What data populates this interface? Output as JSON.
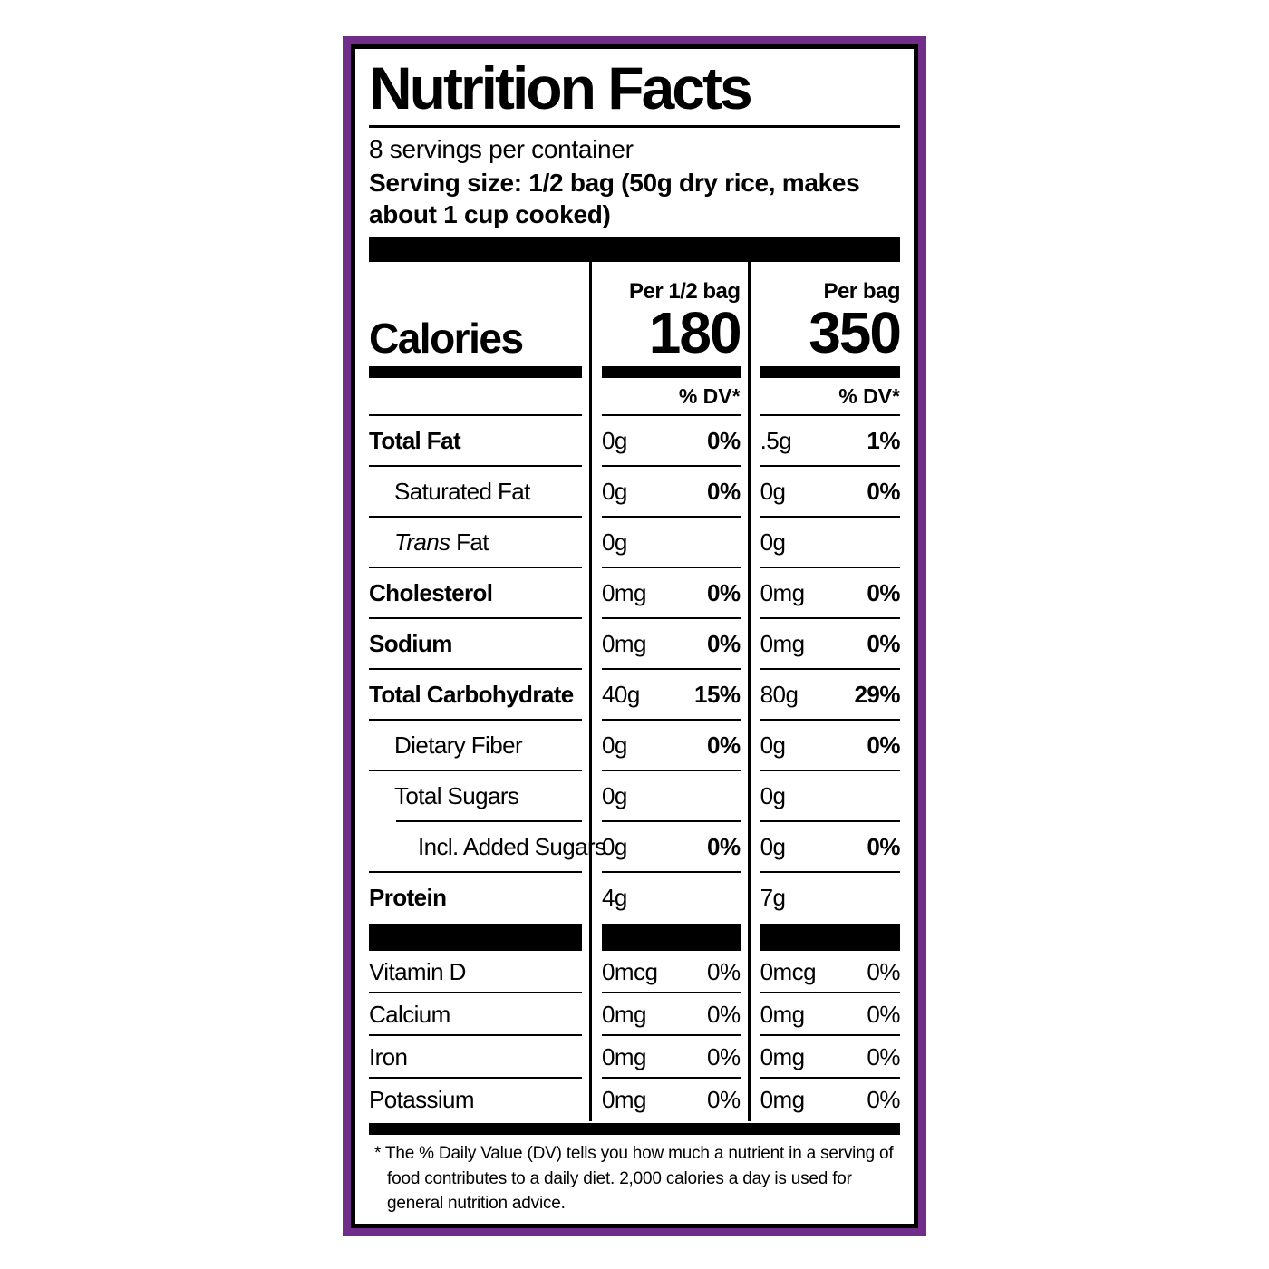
{
  "colors": {
    "border_purple": "#712d8a",
    "text": "#000000",
    "background": "#ffffff"
  },
  "label": {
    "title": "Nutrition Facts",
    "servings_per_container": "8 servings per container",
    "serving_size": "Serving size: 1/2 bag (50g dry rice, makes about 1 cup cooked)",
    "calories": {
      "label": "Calories",
      "col1_header": "Per 1/2 bag",
      "col1_value": "180",
      "col2_header": "Per bag",
      "col2_value": "350"
    },
    "dv_header": "% DV*",
    "rows": [
      {
        "name": "Total Fat",
        "v1": "0g",
        "p1": "0%",
        "v2": ".5g",
        "p2": "1%"
      },
      {
        "name": "Saturated Fat",
        "v1": "0g",
        "p1": "0%",
        "v2": "0g",
        "p2": "0%"
      },
      {
        "name_italic": "Trans",
        "name_rest": " Fat",
        "v1": "0g",
        "p1": "",
        "v2": "0g",
        "p2": ""
      },
      {
        "name": "Cholesterol",
        "v1": "0mg",
        "p1": "0%",
        "v2": "0mg",
        "p2": "0%"
      },
      {
        "name": "Sodium",
        "v1": "0mg",
        "p1": "0%",
        "v2": "0mg",
        "p2": "0%"
      },
      {
        "name": "Total Carbohydrate",
        "v1": "40g",
        "p1": "15%",
        "v2": "80g",
        "p2": "29%"
      },
      {
        "name": "Dietary Fiber",
        "v1": "0g",
        "p1": "0%",
        "v2": "0g",
        "p2": "0%"
      },
      {
        "name": "Total Sugars",
        "v1": "0g",
        "p1": "",
        "v2": "0g",
        "p2": ""
      },
      {
        "name": "Incl. Added Sugars",
        "v1": "0g",
        "p1": "0%",
        "v2": "0g",
        "p2": "0%"
      },
      {
        "name": "Protein",
        "v1": "4g",
        "p1": "",
        "v2": "7g",
        "p2": ""
      }
    ],
    "vitamins": [
      {
        "name": "Vitamin D",
        "v1": "0mcg",
        "p1": "0%",
        "v2": "0mcg",
        "p2": "0%"
      },
      {
        "name": "Calcium",
        "v1": "0mg",
        "p1": "0%",
        "v2": "0mg",
        "p2": "0%"
      },
      {
        "name": "Iron",
        "v1": "0mg",
        "p1": "0%",
        "v2": "0mg",
        "p2": "0%"
      },
      {
        "name": "Potassium",
        "v1": "0mg",
        "p1": "0%",
        "v2": "0mg",
        "p2": "0%"
      }
    ],
    "footnote": "* The % Daily Value (DV) tells you how much a nutrient in a serving of food contributes to a daily diet. 2,000 calories a day is used for general nutrition advice."
  }
}
